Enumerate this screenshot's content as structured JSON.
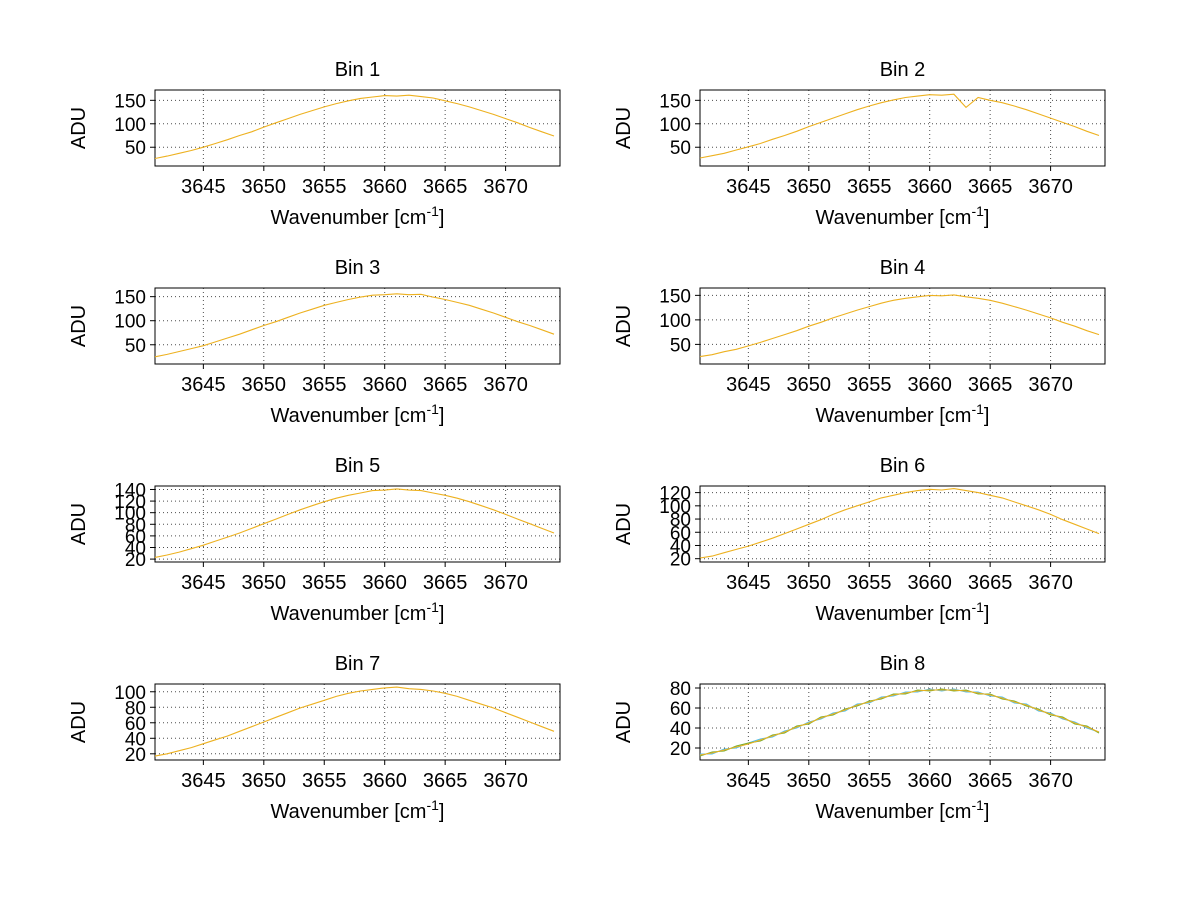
{
  "page": {
    "background": "#ffffff"
  },
  "axis_style": {
    "grid": "dotted",
    "grid_color": "#4d4d4d",
    "box_color": "#000000"
  },
  "chart_data": [
    {
      "type": "line",
      "title": "Bin 1",
      "ylabel": "ADU",
      "xlabel": {
        "prefix": "Wavenumber [cm",
        "sup": "-1",
        "suffix": "]"
      },
      "x_start": 3641,
      "x_step": 1,
      "xlim": [
        3641,
        3674.5
      ],
      "ylim": [
        10,
        172
      ],
      "xticks": [
        3645,
        3650,
        3655,
        3660,
        3665,
        3670
      ],
      "yticks": [
        50,
        100,
        150
      ],
      "series": [
        {
          "name": "spectrum",
          "color": "#EDB120",
          "values": [
            26,
            31,
            37,
            43,
            50,
            58,
            66,
            75,
            83,
            93,
            102,
            111,
            120,
            128,
            136,
            143,
            149,
            154,
            157,
            160,
            159,
            161,
            158,
            155,
            149,
            143,
            136,
            128,
            120,
            111,
            102,
            92,
            83,
            74
          ]
        }
      ]
    },
    {
      "type": "line",
      "title": "Bin 2",
      "ylabel": "ADU",
      "xlabel": {
        "prefix": "Wavenumber [cm",
        "sup": "-1",
        "suffix": "]"
      },
      "x_start": 3641,
      "x_step": 1,
      "xlim": [
        3641,
        3674.5
      ],
      "ylim": [
        10,
        172
      ],
      "xticks": [
        3645,
        3650,
        3655,
        3660,
        3665,
        3670
      ],
      "yticks": [
        50,
        100,
        150
      ],
      "series": [
        {
          "name": "spectrum",
          "color": "#EDB120",
          "values": [
            27,
            32,
            37,
            44,
            51,
            58,
            67,
            75,
            84,
            94,
            103,
            112,
            121,
            130,
            138,
            145,
            151,
            156,
            159,
            162,
            161,
            163,
            135,
            156,
            150,
            145,
            138,
            130,
            121,
            112,
            103,
            94,
            84,
            75
          ]
        }
      ]
    },
    {
      "type": "line",
      "title": "Bin 3",
      "ylabel": "ADU",
      "xlabel": {
        "prefix": "Wavenumber [cm",
        "sup": "-1",
        "suffix": "]"
      },
      "x_start": 3641,
      "x_step": 1,
      "xlim": [
        3641,
        3674.5
      ],
      "ylim": [
        10,
        168
      ],
      "xticks": [
        3645,
        3650,
        3655,
        3660,
        3665,
        3670
      ],
      "yticks": [
        50,
        100,
        150
      ],
      "series": [
        {
          "name": "spectrum",
          "color": "#EDB120",
          "values": [
            25,
            30,
            36,
            42,
            48,
            56,
            64,
            72,
            81,
            90,
            98,
            107,
            116,
            124,
            132,
            138,
            144,
            149,
            153,
            154,
            156,
            154,
            155,
            149,
            144,
            138,
            132,
            124,
            116,
            107,
            98,
            90,
            81,
            72
          ]
        }
      ]
    },
    {
      "type": "line",
      "title": "Bin 4",
      "ylabel": "ADU",
      "xlabel": {
        "prefix": "Wavenumber [cm",
        "sup": "-1",
        "suffix": "]"
      },
      "x_start": 3641,
      "x_step": 1,
      "xlim": [
        3641,
        3674.5
      ],
      "ylim": [
        10,
        165
      ],
      "xticks": [
        3645,
        3650,
        3655,
        3660,
        3665,
        3670
      ],
      "yticks": [
        50,
        100,
        150
      ],
      "series": [
        {
          "name": "spectrum",
          "color": "#EDB120",
          "values": [
            25,
            29,
            35,
            40,
            47,
            54,
            62,
            70,
            78,
            87,
            95,
            104,
            112,
            120,
            127,
            134,
            140,
            144,
            147,
            150,
            149,
            151,
            147,
            144,
            140,
            134,
            127,
            120,
            112,
            104,
            95,
            87,
            78,
            70
          ]
        }
      ]
    },
    {
      "type": "line",
      "title": "Bin 5",
      "ylabel": "ADU",
      "xlabel": {
        "prefix": "Wavenumber [cm",
        "sup": "-1",
        "suffix": "]"
      },
      "x_start": 3641,
      "x_step": 1,
      "xlim": [
        3641,
        3674.5
      ],
      "ylim": [
        15,
        146
      ],
      "xticks": [
        3645,
        3650,
        3655,
        3660,
        3665,
        3670
      ],
      "yticks": [
        20,
        40,
        60,
        80,
        100,
        120,
        140
      ],
      "series": [
        {
          "name": "spectrum",
          "color": "#EDB120",
          "values": [
            23,
            27,
            32,
            38,
            44,
            51,
            58,
            65,
            73,
            81,
            89,
            97,
            105,
            112,
            119,
            125,
            130,
            134,
            138,
            139,
            141,
            139,
            138,
            134,
            130,
            125,
            119,
            112,
            105,
            97,
            89,
            81,
            73,
            65
          ]
        }
      ]
    },
    {
      "type": "line",
      "title": "Bin 6",
      "ylabel": "ADU",
      "xlabel": {
        "prefix": "Wavenumber [cm",
        "sup": "-1",
        "suffix": "]"
      },
      "x_start": 3641,
      "x_step": 1,
      "xlim": [
        3641,
        3674.5
      ],
      "ylim": [
        15,
        130
      ],
      "xticks": [
        3645,
        3650,
        3655,
        3660,
        3665,
        3670
      ],
      "yticks": [
        20,
        40,
        60,
        80,
        100,
        120
      ],
      "series": [
        {
          "name": "spectrum",
          "color": "#EDB120",
          "values": [
            21,
            24,
            29,
            34,
            39,
            45,
            51,
            58,
            65,
            72,
            79,
            87,
            94,
            100,
            106,
            112,
            116,
            120,
            123,
            125,
            124,
            126,
            123,
            120,
            116,
            112,
            106,
            100,
            94,
            87,
            79,
            72,
            65,
            58
          ]
        }
      ]
    },
    {
      "type": "line",
      "title": "Bin 7",
      "ylabel": "ADU",
      "xlabel": {
        "prefix": "Wavenumber [cm",
        "sup": "-1",
        "suffix": "]"
      },
      "x_start": 3641,
      "x_step": 1,
      "xlim": [
        3641,
        3674.5
      ],
      "ylim": [
        12,
        110
      ],
      "xticks": [
        3645,
        3650,
        3655,
        3660,
        3665,
        3670
      ],
      "yticks": [
        20,
        40,
        60,
        80,
        100
      ],
      "series": [
        {
          "name": "spectrum",
          "color": "#EDB120",
          "values": [
            17,
            20,
            24,
            28,
            33,
            38,
            43,
            49,
            55,
            61,
            67,
            73,
            79,
            84,
            89,
            94,
            98,
            101,
            103,
            105,
            106,
            104,
            103,
            101,
            98,
            94,
            89,
            84,
            79,
            73,
            67,
            61,
            55,
            49
          ]
        }
      ]
    },
    {
      "type": "line",
      "title": "Bin 8",
      "ylabel": "ADU",
      "xlabel": {
        "prefix": "Wavenumber [cm",
        "sup": "-1",
        "suffix": "]"
      },
      "x_start": 3641,
      "x_step": 1,
      "xlim": [
        3641,
        3674.5
      ],
      "ylim": [
        8,
        84
      ],
      "xticks": [
        3645,
        3650,
        3655,
        3660,
        3665,
        3670
      ],
      "yticks": [
        20,
        40,
        60,
        80
      ],
      "series": [
        {
          "name": "spectrum-cyan",
          "color": "#4DBEEE",
          "values": [
            14,
            14,
            19,
            20,
            25,
            29,
            31,
            37,
            40,
            46,
            49,
            55,
            57,
            64,
            65,
            71,
            72,
            76,
            76,
            79,
            77,
            79,
            76,
            76,
            72,
            71,
            65,
            64,
            57,
            55,
            49,
            46,
            40,
            36
          ]
        },
        {
          "name": "spectrum-green",
          "color": "#77AC30",
          "values": [
            12,
            16,
            17,
            22,
            25,
            27,
            33,
            35,
            42,
            44,
            51,
            53,
            59,
            62,
            67,
            69,
            74,
            74,
            78,
            77,
            79,
            77,
            78,
            74,
            74,
            69,
            67,
            62,
            59,
            53,
            51,
            44,
            42,
            35
          ]
        },
        {
          "name": "spectrum-yellow",
          "color": "#EDB120",
          "values": [
            13,
            15,
            18,
            21,
            24,
            28,
            32,
            36,
            41,
            45,
            50,
            54,
            58,
            63,
            66,
            70,
            73,
            75,
            77,
            78,
            78,
            78,
            77,
            75,
            73,
            70,
            66,
            63,
            58,
            54,
            50,
            45,
            41,
            36
          ]
        }
      ]
    }
  ]
}
